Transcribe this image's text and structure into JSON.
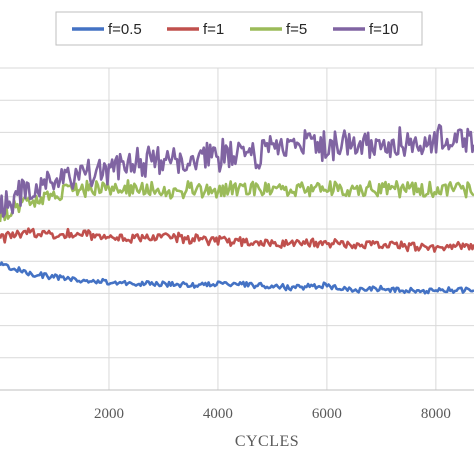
{
  "chart_data": {
    "type": "line",
    "title": "",
    "xlabel": "CYCLES",
    "ylabel": "",
    "xlim": [
      0,
      8700
    ],
    "ylim": [
      0,
      100
    ],
    "x_ticks": [
      2000,
      4000,
      6000,
      8000
    ],
    "x_tick_labels": [
      "2000",
      "4000",
      "6000",
      "8000"
    ],
    "grid": "vertical and horizontal gridlines",
    "legend_position": "top",
    "series": [
      {
        "name": "f=0.5",
        "color": "#4472C4",
        "x": [
          0,
          500,
          1000,
          1500,
          2000,
          2500,
          3000,
          3500,
          4000,
          4500,
          5000,
          5500,
          6000,
          6500,
          7000,
          7500,
          8000,
          8500,
          8700
        ],
        "values": [
          39.0,
          36.5,
          35.0,
          34.0,
          33.5,
          33.0,
          33.0,
          32.5,
          33.0,
          33.0,
          32.0,
          32.0,
          32.5,
          31.0,
          31.5,
          31.0,
          30.8,
          31.0,
          31.0
        ],
        "noise": 0.8
      },
      {
        "name": "f=1",
        "color": "#C0504D",
        "x": [
          0,
          500,
          1000,
          1500,
          2000,
          2500,
          3000,
          3500,
          4000,
          4500,
          5000,
          5500,
          6000,
          6500,
          7000,
          7500,
          8000,
          8500,
          8700
        ],
        "values": [
          47.0,
          49.0,
          48.5,
          48.5,
          47.5,
          47.0,
          47.5,
          47.0,
          46.5,
          46.0,
          45.5,
          45.5,
          45.5,
          45.0,
          45.5,
          44.5,
          44.5,
          44.5,
          44.5
        ],
        "noise": 1.3
      },
      {
        "name": "f=5",
        "color": "#9BBB59",
        "x": [
          0,
          500,
          1000,
          1500,
          2000,
          2500,
          3000,
          3500,
          4000,
          4500,
          5000,
          5500,
          6000,
          6500,
          7000,
          7500,
          8000,
          8500,
          8700
        ],
        "values": [
          54.0,
          58.0,
          60.5,
          62.0,
          62.5,
          62.5,
          62.0,
          62.5,
          62.0,
          62.0,
          62.5,
          63.0,
          62.5,
          62.0,
          62.5,
          62.0,
          62.0,
          62.5,
          62.5
        ],
        "noise": 2.2
      },
      {
        "name": "f=10",
        "color": "#8064A2",
        "x": [
          0,
          500,
          1000,
          1500,
          2000,
          2500,
          3000,
          3500,
          4000,
          4500,
          5000,
          5500,
          6000,
          6500,
          7000,
          7500,
          8000,
          8500,
          8700
        ],
        "values": [
          56.0,
          62.0,
          64.5,
          67.0,
          69.0,
          71.0,
          71.0,
          72.0,
          72.5,
          73.0,
          74.5,
          75.5,
          76.0,
          76.5,
          76.5,
          77.0,
          77.5,
          78.0,
          78.0
        ],
        "noise": 4.2
      }
    ]
  }
}
